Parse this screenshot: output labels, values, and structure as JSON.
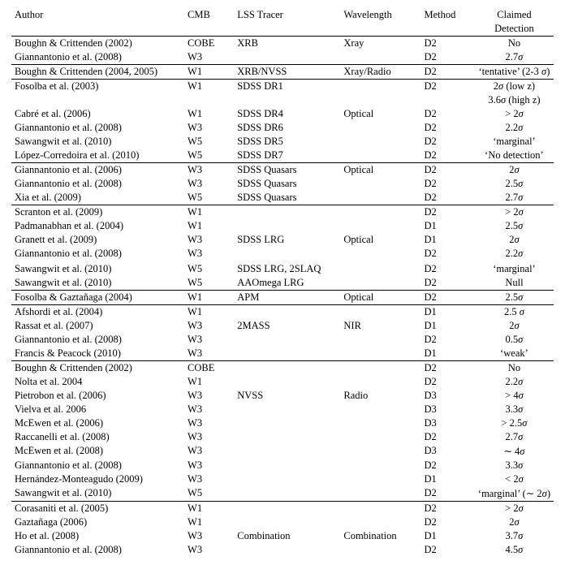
{
  "header": {
    "author": "Author",
    "cmb": "CMB",
    "tracer": "LSS Tracer",
    "wave": "Wavelength",
    "method": "Method",
    "claim1": "Claimed",
    "claim2": "Detection"
  },
  "groups": [
    {
      "rows": [
        {
          "author": "Boughn & Crittenden (2002)",
          "cmb": "COBE",
          "tracer": "XRB",
          "wave": "Xray",
          "method": "D2",
          "claim": "No"
        },
        {
          "author": "Giannantonio et al. (2008)",
          "cmb": "W3",
          "tracer": "",
          "wave": "",
          "method": "D2",
          "claim": "2.7σ"
        }
      ]
    },
    {
      "rows": [
        {
          "author": "Boughn & Crittenden (2004, 2005)",
          "cmb": "W1",
          "tracer": "XRB/NVSS",
          "wave": "Xray/Radio",
          "method": "D2",
          "claim": "‘tentative’ (2-3 σ)"
        }
      ]
    },
    {
      "rows": [
        {
          "author": "Fosolba et al. (2003)",
          "cmb": "W1",
          "tracer": "SDSS DR1",
          "wave": "",
          "method": "D2",
          "claim": "2σ (low z)"
        },
        {
          "author": "",
          "cmb": "",
          "tracer": "",
          "wave": "",
          "method": "",
          "claim": "3.6σ (high z)"
        },
        {
          "author": "Cabré et al. (2006)",
          "cmb": "W1",
          "tracer": "SDSS DR4",
          "wave": "Optical",
          "method": "D2",
          "claim": "> 2σ"
        },
        {
          "author": "Giannantonio et al. (2008)",
          "cmb": "W3",
          "tracer": "SDSS DR6",
          "wave": "",
          "method": "D2",
          "claim": "2.2σ"
        },
        {
          "author": "Sawangwit et al. (2010)",
          "cmb": "W5",
          "tracer": "SDSS DR5",
          "wave": "",
          "method": "D2",
          "claim": "‘marginal’"
        },
        {
          "author": "López-Corredoira et al. (2010)",
          "cmb": "W5",
          "tracer": "SDSS DR7",
          "wave": "",
          "method": "D2",
          "claim": "‘No detection’"
        }
      ]
    },
    {
      "rows": [
        {
          "author": "Giannantonio et al. (2006)",
          "cmb": "W3",
          "tracer": "SDSS Quasars",
          "wave": "Optical",
          "method": "D2",
          "claim": "2σ"
        },
        {
          "author": "Giannantonio et al. (2008)",
          "cmb": "W3",
          "tracer": "SDSS Quasars",
          "wave": "",
          "method": "D2",
          "claim": "2.5σ"
        },
        {
          "author": "Xia et al. (2009)",
          "cmb": "W5",
          "tracer": "SDSS Quasars",
          "wave": "",
          "method": "D2",
          "claim": "2.7σ"
        }
      ]
    },
    {
      "rows": [
        {
          "author": "Scranton et al. (2009)",
          "cmb": "W1",
          "tracer": "",
          "wave": "",
          "method": "D2",
          "claim": "> 2σ"
        },
        {
          "author": "Padmanabhan et al. (2004)",
          "cmb": "W1",
          "tracer": "",
          "wave": "",
          "method": "D1",
          "claim": "2.5σ"
        },
        {
          "author": "Granett et al. (2009)",
          "cmb": "W3",
          "tracer": "SDSS LRG",
          "wave": "Optical",
          "method": "D1",
          "claim": "2σ"
        },
        {
          "author": "Giannantonio et al. (2008)",
          "cmb": "W3",
          "tracer": "",
          "wave": "",
          "method": "D2",
          "claim": "2.2σ"
        },
        {
          "author": "",
          "cmb": "",
          "tracer": "",
          "wave": "",
          "method": "",
          "claim": ""
        },
        {
          "author": "Sawangwit et al. (2010)",
          "cmb": "W5",
          "tracer": "SDSS LRG, 2SLAQ",
          "wave": "",
          "method": "D2",
          "claim": "‘marginal’"
        },
        {
          "author": "Sawangwit et al. (2010)",
          "cmb": "W5",
          "tracer": "AAOmega LRG",
          "wave": "",
          "method": "D2",
          "claim": "Null"
        }
      ]
    },
    {
      "rows": [
        {
          "author": "Fosolba & Gaztañaga (2004)",
          "cmb": "W1",
          "tracer": "APM",
          "wave": "Optical",
          "method": "D2",
          "claim": "2.5σ"
        }
      ]
    },
    {
      "rows": [
        {
          "author": "Afshordi et al. (2004)",
          "cmb": "W1",
          "tracer": "",
          "wave": "",
          "method": "D1",
          "claim": "2.5 σ"
        },
        {
          "author": "Rassat et al. (2007)",
          "cmb": "W3",
          "tracer": "2MASS",
          "wave": "NIR",
          "method": "D1",
          "claim": "2σ"
        },
        {
          "author": "Giannantonio et al. (2008)",
          "cmb": "W3",
          "tracer": "",
          "wave": "",
          "method": "D2",
          "claim": "0.5σ"
        },
        {
          "author": "Francis & Peacock (2010)",
          "cmb": "W3",
          "tracer": "",
          "wave": "",
          "method": "D1",
          "claim": "‘weak’"
        }
      ]
    },
    {
      "rows": [
        {
          "author": "Boughn & Crittenden (2002)",
          "cmb": "COBE",
          "tracer": "",
          "wave": "",
          "method": "D2",
          "claim": "No"
        },
        {
          "author": "Nolta et al. 2004",
          "cmb": "W1",
          "tracer": "",
          "wave": "",
          "method": "D2",
          "claim": "2.2σ"
        },
        {
          "author": "Pietrobon et al. (2006)",
          "cmb": "W3",
          "tracer": "NVSS",
          "wave": "Radio",
          "method": "D3",
          "claim": "> 4σ"
        },
        {
          "author": "Vielva et al. 2006",
          "cmb": "W3",
          "tracer": "",
          "wave": "",
          "method": "D3",
          "claim": "3.3σ"
        },
        {
          "author": "McEwen et al. (2006)",
          "cmb": "W3",
          "tracer": "",
          "wave": "",
          "method": "D3",
          "claim": "> 2.5σ"
        },
        {
          "author": "Raccanelli et al. (2008)",
          "cmb": "W3",
          "tracer": "",
          "wave": "",
          "method": "D2",
          "claim": "2.7σ"
        },
        {
          "author": "McEwen et al. (2008)",
          "cmb": "W3",
          "tracer": "",
          "wave": "",
          "method": "D3",
          "claim": "∼ 4σ"
        },
        {
          "author": "Giannantonio et al. (2008)",
          "cmb": "W3",
          "tracer": "",
          "wave": "",
          "method": "D2",
          "claim": "3.3σ"
        },
        {
          "author": "Hernández-Monteagudo (2009)",
          "cmb": "W3",
          "tracer": "",
          "wave": "",
          "method": "D1",
          "claim": "< 2σ"
        },
        {
          "author": "Sawangwit et al. (2010)",
          "cmb": "W5",
          "tracer": "",
          "wave": "",
          "method": "D2",
          "claim": "‘marginal’ (∼ 2σ)"
        }
      ]
    },
    {
      "rows": [
        {
          "author": "Corasaniti et al. (2005)",
          "cmb": "W1",
          "tracer": "",
          "wave": "",
          "method": "D2",
          "claim": "> 2σ"
        },
        {
          "author": "Gaztañaga (2006)",
          "cmb": "W1",
          "tracer": "",
          "wave": "",
          "method": "D2",
          "claim": "2σ"
        },
        {
          "author": "Ho et al. (2008)",
          "cmb": "W3",
          "tracer": "Combination",
          "wave": "Combination",
          "method": "D1",
          "claim": "3.7σ"
        },
        {
          "author": "Giannantonio et al. (2008)",
          "cmb": "W3",
          "tracer": "",
          "wave": "",
          "method": "D2",
          "claim": "4.5σ"
        }
      ]
    }
  ]
}
